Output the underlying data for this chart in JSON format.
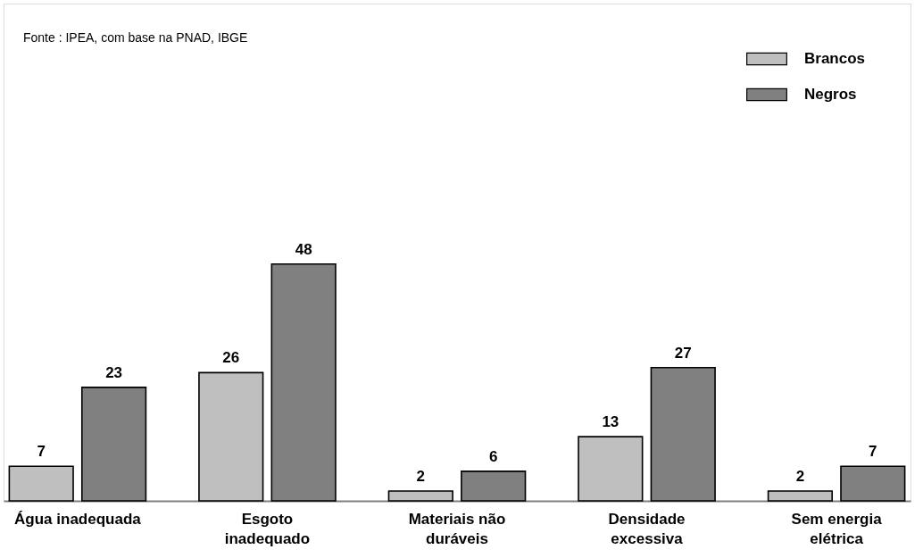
{
  "chart_data": {
    "type": "bar",
    "categories": [
      "Água inadequada",
      "Esgoto inadequado",
      "Materiais não duráveis",
      "Densidade excessiva",
      "Sem energia elétrica"
    ],
    "series": [
      {
        "name": "Brancos",
        "color": "#bfbfbf",
        "values": [
          7,
          26,
          2,
          13,
          2
        ]
      },
      {
        "name": "Negros",
        "color": "#808080",
        "values": [
          23,
          48,
          6,
          27,
          7
        ]
      }
    ],
    "data_labels": true,
    "legend": "top right",
    "grid": false,
    "annotations": [
      "Fonte : IPEA, com base na PNAD, IBGE"
    ]
  }
}
